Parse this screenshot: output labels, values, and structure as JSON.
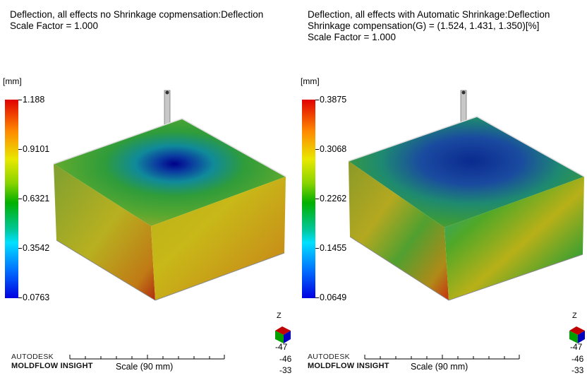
{
  "left": {
    "title_line1": "Deflection, all effects no Shrinkage copmensation:Deflection",
    "title_line2": "Scale Factor = 1.000",
    "unit": "[mm]",
    "ticks": [
      "1.188",
      "0.9101",
      "0.6321",
      "0.3542",
      "0.0763"
    ],
    "axis_z": "Z",
    "coord_values": [
      "-47",
      "-46",
      "-33"
    ],
    "brand_line1": "AUTODESK",
    "brand_line2": "MOLDFLOW INSIGHT",
    "scale_label": "Scale (90 mm)"
  },
  "right": {
    "title_line1": "Deflection, all effects with Automatic Shrinkage:Deflection",
    "title_line2": "Shrinkage compensation(G) = (1.524, 1.431, 1.350)[%]",
    "title_line3": "Scale Factor = 1.000",
    "unit": "[mm]",
    "ticks": [
      "0.3875",
      "0.3068",
      "0.2262",
      "0.1455",
      "0.0649"
    ],
    "axis_z": "Z",
    "coord_values": [
      "-47",
      "-46",
      "-33"
    ],
    "brand_line1": "AUTODESK",
    "brand_line2": "MOLDFLOW INSIGHT",
    "scale_label": "Scale (90 mm)"
  }
}
